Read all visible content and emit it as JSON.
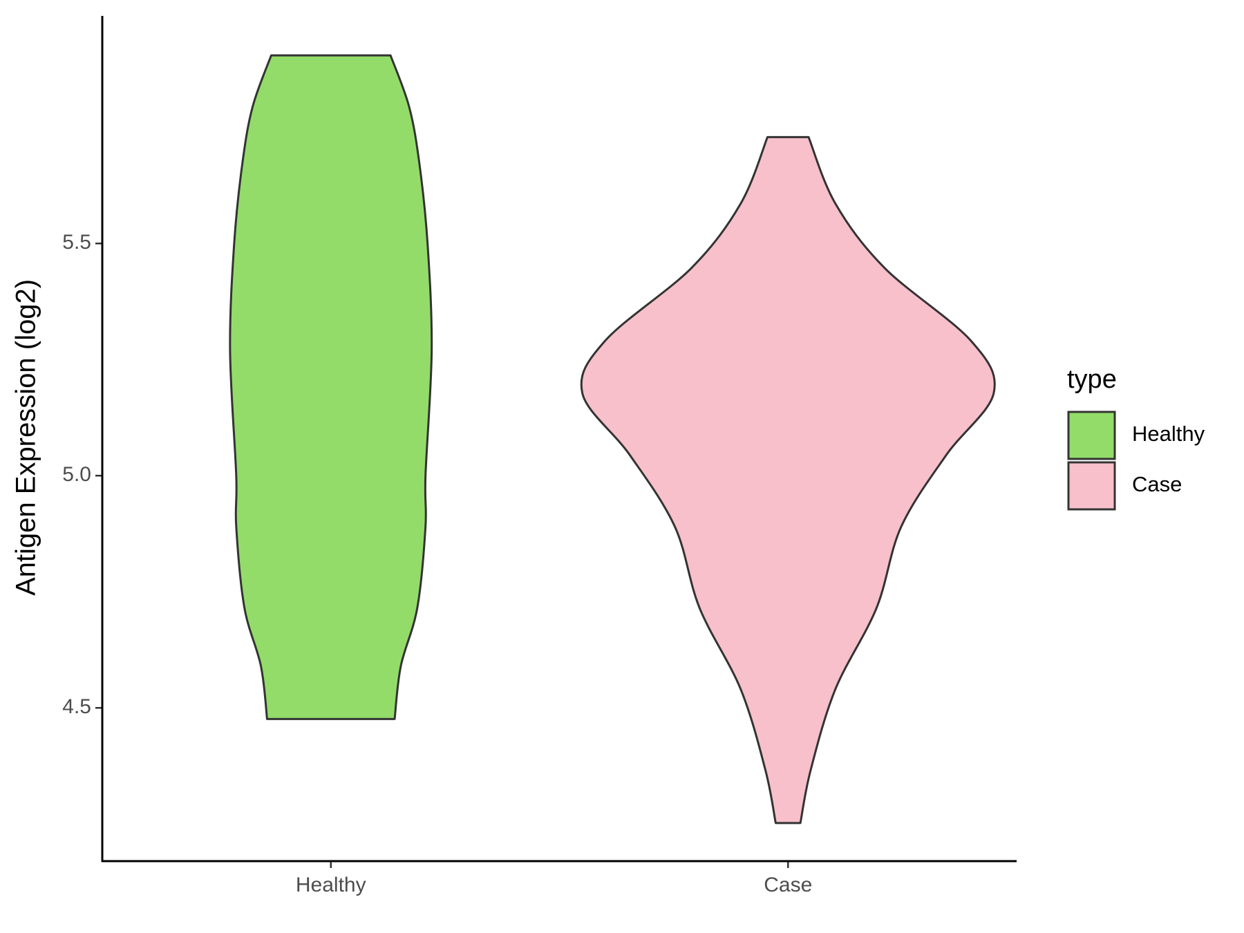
{
  "chart_data": {
    "type": "violin",
    "y_label": "Antigen Expression (log2)",
    "legend_title": "type",
    "categories": [
      "Healthy",
      "Case"
    ],
    "ylim": [
      4.17,
      5.99
    ],
    "yticks": [
      4.5,
      {
        "value": 5.0,
        "label": "5.0"
      },
      5.5
    ],
    "series": [
      {
        "name": "Healthy",
        "color": "#93dc6a",
        "y": [
          5.905,
          5.795,
          5.673,
          5.5,
          5.27,
          5.0,
          4.89,
          4.715,
          4.59,
          4.476
        ],
        "widths": [
          0.29,
          0.38,
          0.43,
          0.47,
          0.49,
          0.46,
          0.46,
          0.42,
          0.34,
          0.31
        ]
      },
      {
        "name": "Case",
        "color": "#f7c0cb",
        "y": [
          5.729,
          5.586,
          5.447,
          5.29,
          5.178,
          5.045,
          4.89,
          4.715,
          4.54,
          4.366,
          4.252
        ],
        "widths": [
          0.1,
          0.23,
          0.47,
          0.89,
          1.0,
          0.77,
          0.55,
          0.43,
          0.23,
          0.11,
          0.06
        ]
      }
    ]
  }
}
